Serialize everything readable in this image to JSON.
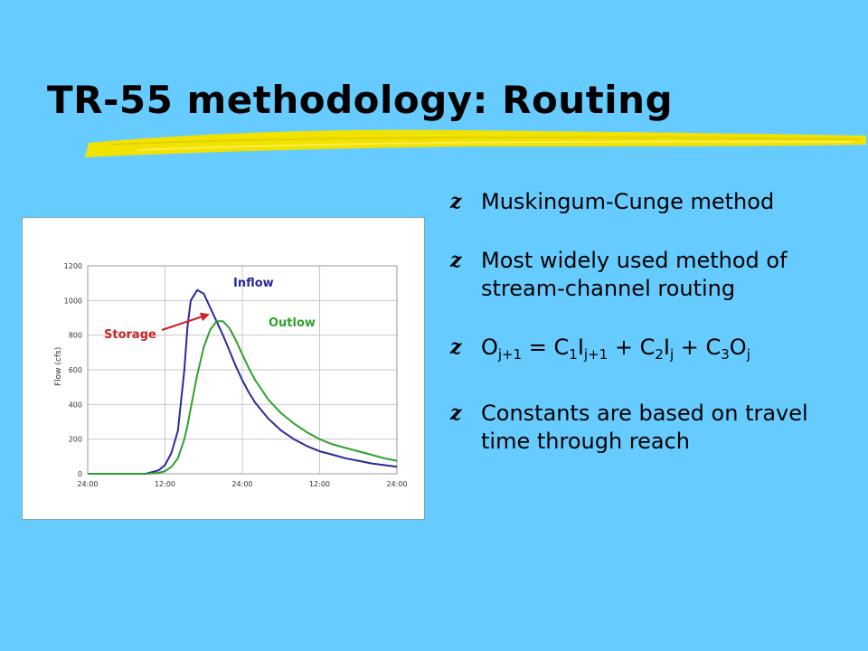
{
  "slide": {
    "title": "TR-55 methodology: Routing",
    "bullet_glyph": "z",
    "bullets": [
      "Muskingum-Cunge method",
      "Most widely used method of stream-channel routing",
      "Constants are based on travel time through reach"
    ],
    "equation": {
      "o": "O",
      "j1": "j+1",
      "eq": " = C",
      "c1": "1",
      "i": "I",
      "ij1": "j+1",
      "plus1": " + C",
      "c2": "2",
      "i2": "I",
      "ij": "j",
      "plus2": " + C",
      "c3": "3",
      "o2": "O",
      "oj": "j"
    }
  },
  "chart_data": {
    "type": "line",
    "y_ticks": [
      "0",
      "200",
      "400",
      "600",
      "800",
      "1000",
      "1200"
    ],
    "ylim": [
      0,
      1200
    ],
    "x_ticks": [
      "24:00",
      "12:00",
      "24:00",
      "12:00",
      "24:00"
    ],
    "x": [
      0,
      6,
      9,
      11,
      12,
      13,
      14,
      15,
      15.5,
      16,
      17,
      18,
      19,
      20,
      21,
      22,
      23,
      24,
      25,
      26,
      28,
      30,
      32,
      34,
      36,
      38,
      40,
      42,
      44,
      46,
      48
    ],
    "series": [
      {
        "name": "Inflow",
        "color": "#2a2a9a",
        "values": [
          0,
          0,
          0,
          20,
          50,
          120,
          250,
          600,
          850,
          1000,
          1060,
          1040,
          960,
          880,
          800,
          710,
          620,
          540,
          470,
          410,
          320,
          250,
          200,
          160,
          130,
          110,
          90,
          75,
          60,
          50,
          40
        ]
      },
      {
        "name": "Outlow",
        "color": "#2ea02e",
        "values": [
          0,
          0,
          0,
          5,
          15,
          40,
          90,
          200,
          280,
          380,
          570,
          730,
          830,
          880,
          880,
          840,
          770,
          690,
          610,
          540,
          430,
          350,
          290,
          240,
          200,
          170,
          150,
          130,
          110,
          90,
          75
        ]
      }
    ],
    "annotation": "Storage",
    "annotation_color": "#cc2222",
    "grid": true
  }
}
